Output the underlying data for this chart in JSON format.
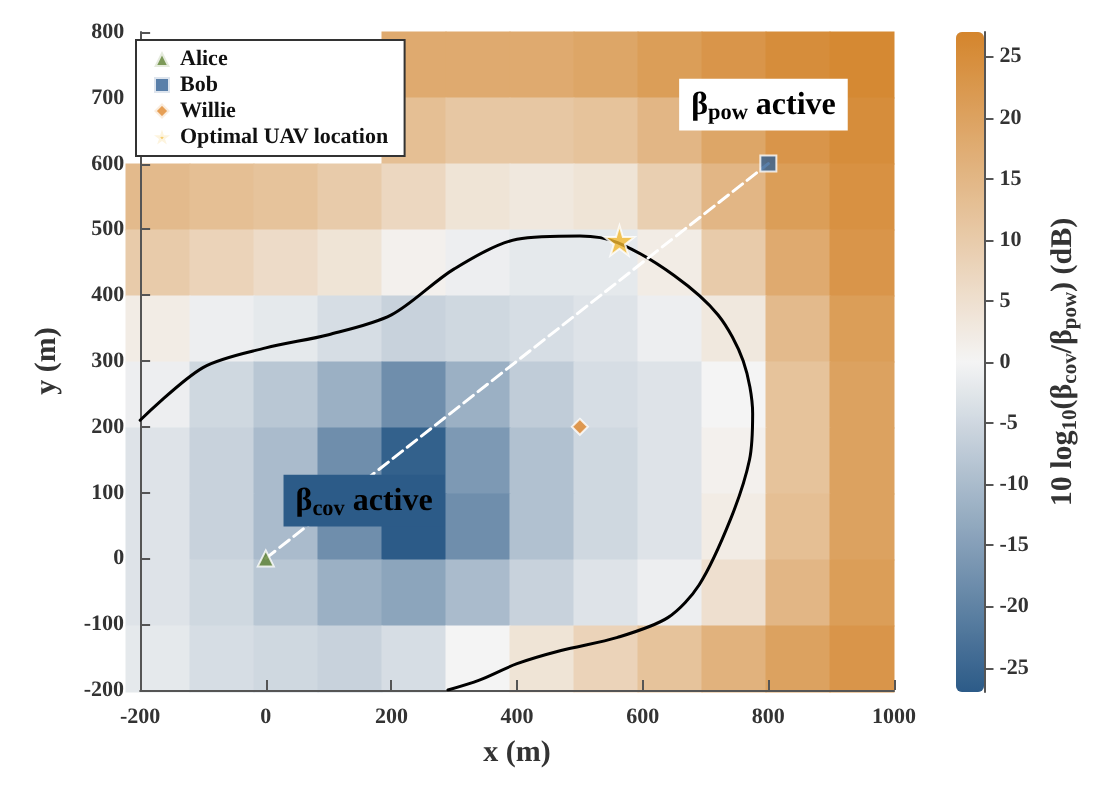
{
  "chart_data": [
    {
      "type": "heatmap",
      "clabel": "10 log$_{10}$(β$_{cov}$/β$_{pow}$) (dB)",
      "clim": [
        -27,
        27
      ],
      "cticks": [
        -25,
        -20,
        -15,
        -10,
        -5,
        0,
        5,
        10,
        15,
        20,
        25
      ],
      "categories": [
        null,
        null,
        null,
        null,
        null,
        null,
        null,
        null,
        null,
        null,
        null,
        null
      ],
      "y_categories": [
        null,
        null,
        null,
        null,
        null,
        null,
        null,
        null,
        null,
        null
      ],
      "cells": [
        [
          null,
          null,
          null,
          null,
          18,
          18,
          18,
          19,
          21,
          23,
          25,
          26
        ],
        [
          null,
          null,
          null,
          null,
          13,
          11,
          11,
          12,
          15,
          19,
          23,
          25
        ],
        [
          14,
          13,
          12,
          10,
          7,
          4,
          3,
          4,
          9,
          15,
          21,
          24
        ],
        [
          10,
          8,
          6,
          4,
          1,
          -1,
          -2,
          -2,
          2,
          10,
          18,
          23
        ],
        [
          2,
          -1,
          -2,
          -4,
          -6,
          -5,
          -4,
          -3,
          -1,
          3,
          14,
          21
        ],
        [
          -1,
          -5,
          -8,
          -12,
          -18,
          -12,
          -7,
          -4,
          -3,
          0,
          12,
          20
        ],
        [
          -3,
          -6,
          -10,
          -18,
          -26,
          -16,
          -9,
          -5,
          -3,
          1,
          12,
          20
        ],
        [
          -3,
          -6,
          -10,
          -18,
          -27,
          -18,
          -9,
          -5,
          -3,
          2,
          13,
          20
        ],
        [
          -3,
          -5,
          -8,
          -12,
          -14,
          -10,
          -6,
          -3,
          -1,
          5,
          15,
          21
        ],
        [
          -2,
          -4,
          -5,
          -6,
          -4,
          0,
          4,
          8,
          12,
          16,
          20,
          23
        ]
      ]
    },
    {
      "type": "scatter",
      "xlabel": "x (m)",
      "ylabel": "y (m)",
      "xlim": [
        -200,
        1000
      ],
      "xticks": [
        -200,
        0,
        200,
        400,
        600,
        800,
        1000
      ],
      "ylim": [
        -200,
        800
      ],
      "yticks": [
        -200,
        -100,
        0,
        100,
        200,
        300,
        400,
        500,
        600,
        700,
        800
      ],
      "legend": "top left",
      "annotations": [
        "β$_{pow}$ active",
        "β$_{cov}$ active"
      ],
      "series": [
        {
          "type": "line",
          "color": "#000000",
          "x": [
            -200,
            -100,
            0,
            100,
            200,
            300,
            400,
            500,
            560,
            650,
            720,
            760,
            775,
            770,
            740,
            690,
            640,
            560,
            470,
            400,
            340,
            290
          ],
          "values": [
            210,
            290,
            320,
            340,
            370,
            440,
            485,
            490,
            480,
            430,
            370,
            300,
            220,
            150,
            60,
            -40,
            -90,
            -120,
            -140,
            -160,
            -185,
            -200
          ]
        },
        {
          "type": "line",
          "color": "#ffffff",
          "line_style": "dashed",
          "x": [
            0,
            800
          ],
          "values": [
            0,
            600
          ]
        },
        {
          "name": "Alice",
          "marker": "triangle",
          "color": "#5b7f2e",
          "x": [
            0
          ],
          "values": [
            0
          ]
        },
        {
          "name": "Bob",
          "marker": "square",
          "color": "#2f5f94",
          "x": [
            800
          ],
          "values": [
            600
          ]
        },
        {
          "name": "Willie",
          "marker": "diamond",
          "color": "#e0872a",
          "x": [
            500
          ],
          "values": [
            200
          ]
        },
        {
          "name": "Optimal UAV location",
          "marker": "star",
          "color": "#f2b830",
          "x": [
            563
          ],
          "values": [
            483
          ]
        }
      ]
    }
  ]
}
